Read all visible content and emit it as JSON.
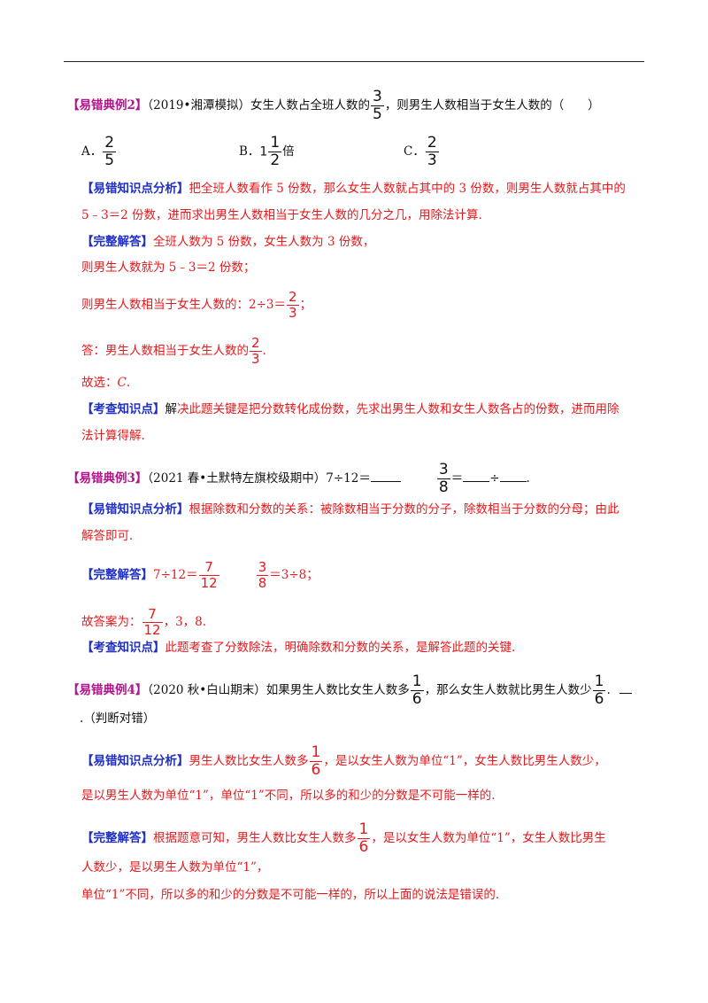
{
  "ex2": {
    "tag": "【易错典例2】",
    "source": "（2019•湘潭模拟）",
    "q_a": "女生人数占全班人数的",
    "q_frac": {
      "num": "3",
      "den": "5"
    },
    "q_b": "，则男生人数相当于女生人数的（　　）",
    "opt_a_label": "A．",
    "opt_a": {
      "num": "2",
      "den": "5"
    },
    "opt_b_label": "B．",
    "opt_b_int": "1",
    "opt_b_frac": {
      "num": "1",
      "den": "2"
    },
    "opt_b_suffix": "倍",
    "opt_c_label": "C．",
    "opt_c": {
      "num": "2",
      "den": "3"
    },
    "analysis_tag": "【易错知识点分析】",
    "analysis_1": "把全班人数看作 5 份数，那么女生人数就占其中的 3 份数，则男生人数就占其中的",
    "analysis_2": "5﹣3＝2 份数，进而求出男生人数相当于女生人数的几分之几，用除法计算.",
    "answer_tag": "【完整解答】",
    "answer_1": "全班人数为 5 份数，女生人数为 3 份数，",
    "answer_2": "则男生人数就为 5﹣3＝2 份数；",
    "answer_3": "则男生人数相当于女生人数的：2÷3＝",
    "answer_3_frac": {
      "num": "2",
      "den": "3"
    },
    "answer_3_end": "；",
    "answer_4": "答：男生人数相当于女生人数的",
    "answer_4_frac": {
      "num": "2",
      "den": "3"
    },
    "answer_4_end": ".",
    "answer_5": "故选：",
    "answer_5_c": "C",
    "answer_5_end": ".",
    "point_tag": "【考查知识点】",
    "point_1a": "解",
    "point_1b": "决此题关键是把分数转化成份数，先求出男生人数和女生人数各占的份数，进而用除",
    "point_2": "法计算得解."
  },
  "ex3": {
    "tag": "【易错典例3】",
    "source": "（2021 春•土默特左旗校级期中）",
    "q_a": "7÷12＝",
    "q_frac": {
      "num": "3",
      "den": "8"
    },
    "q_eq": "＝",
    "q_div": "÷",
    "q_end": ".",
    "analysis_tag": "【易错知识点分析】",
    "analysis_1": "根据除数和分数的关系：被除数相当于分数的分子，除数相当于分数的分母；由此",
    "analysis_2": "解答即可.",
    "answer_tag": "【完整解答】",
    "answer_1a": "7÷12＝",
    "answer_1_frac": {
      "num": "7",
      "den": "12"
    },
    "answer_1_frac2": {
      "num": "3",
      "den": "8"
    },
    "answer_1b": "＝3÷8；",
    "answer_2": "故答案为：",
    "answer_2_frac": {
      "num": "7",
      "den": "12"
    },
    "answer_2_end": "，3，8.",
    "point_tag": "【考查知识点】",
    "point_1": "此题考查了分数除法，明确除数和分数的关系，是解答此题的关键."
  },
  "ex4": {
    "tag": "【易错典例4】",
    "source": "（2020 秋•白山期末）",
    "q_a": "如果男生人数比女生人数多",
    "q_frac": {
      "num": "1",
      "den": "6"
    },
    "q_b": "，那么女生人数就比男生人数少",
    "q_frac2": {
      "num": "1",
      "den": "6"
    },
    "q_c": ".",
    "q_line2": ".（判断对错）",
    "analysis_tag": "【易错知识点分析】",
    "analysis_1a": "男生人数比女生人数多",
    "analysis_1_frac": {
      "num": "1",
      "den": "6"
    },
    "analysis_1b": "，是以女生人数为单位“1”，女生人数比男生人数少，",
    "analysis_2": "是以男生人数为单位“1”，单位“1”不同，所以多的和少的分数是不可能一样的.",
    "answer_tag": "【完整解答】",
    "answer_1a": "根据题意可知，男生人数比女生人数多",
    "answer_1_frac": {
      "num": "1",
      "den": "6"
    },
    "answer_1b": "，是以女生人数为单位“1”，女生人数比男生",
    "answer_2": "人数少，是以男生人数为单位“1”，",
    "answer_3": "单位“1”不同，所以多的和少的分数是不可能一样的，所以上面的说法是错误的."
  }
}
